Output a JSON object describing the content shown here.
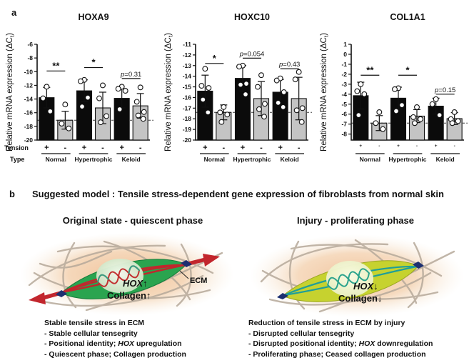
{
  "figure": {
    "panel_a_label": "a",
    "panel_b_label": "b"
  },
  "chart_data": [
    {
      "type": "bar",
      "title": "HOXA9",
      "ylabel": "Relative mRNA expression (ΔC_{t})",
      "ylim": [
        -20,
        -6
      ],
      "yticks": [
        -6,
        -8,
        -10,
        -12,
        -14,
        -16,
        -18,
        -20
      ],
      "dashed_baseline": -17.1,
      "groups": [
        "Normal",
        "Hypertrophic",
        "Keloid"
      ],
      "row_labels": {
        "tension": "Tension",
        "type": "Type"
      },
      "bars": [
        {
          "group": "Normal",
          "tension": "+",
          "color": "black",
          "mean": -13.8,
          "sd": 1.5,
          "points": [
            -12.2,
            -13.9,
            -15.8
          ]
        },
        {
          "group": "Normal",
          "tension": "-",
          "color": "gray",
          "mean": -17.1,
          "sd": 1.3,
          "points": [
            -14.8,
            -17.6,
            -18.3
          ]
        },
        {
          "group": "Hypertrophic",
          "tension": "+",
          "color": "black",
          "mean": -12.8,
          "sd": 1.6,
          "points": [
            -11.2,
            -11.4,
            -13.8,
            -15.1
          ]
        },
        {
          "group": "Hypertrophic",
          "tension": "-",
          "color": "gray",
          "mean": -15.3,
          "sd": 2.3,
          "points": [
            -12.0,
            -13.9,
            -16.5,
            -17.4
          ]
        },
        {
          "group": "Keloid",
          "tension": "+",
          "color": "black",
          "mean": -13.9,
          "sd": 1.4,
          "points": [
            -12.2,
            -12.5,
            -12.8,
            -15.5
          ]
        },
        {
          "group": "Keloid",
          "tension": "-",
          "color": "gray",
          "mean": -15.0,
          "sd": 1.8,
          "points": [
            -12.3,
            -14.4,
            -15.9,
            -16.4,
            -16.9
          ]
        }
      ],
      "annotations": [
        {
          "pair": 0,
          "label": "**",
          "y": -9.9
        },
        {
          "pair": 1,
          "label": "*",
          "y": -9.4
        },
        {
          "pair": 2,
          "label": "p=0.31",
          "y": -11.0
        }
      ]
    },
    {
      "type": "bar",
      "title": "HOXC10",
      "ylabel": "Relative mRNA expression (ΔC_{t})",
      "ylim": [
        -20,
        -11
      ],
      "yticks": [
        -11,
        -12,
        -13,
        -14,
        -15,
        -16,
        -17,
        -18,
        -19,
        -20
      ],
      "dashed_baseline": -17.4,
      "groups": [
        "Normal",
        "Hypertrophic",
        "Keloid"
      ],
      "bars": [
        {
          "group": "Normal",
          "tension": "+",
          "color": "black",
          "mean": -15.4,
          "sd": 1.5,
          "points": [
            -13.3,
            -14.9,
            -15.1,
            -16.2,
            -17.4
          ]
        },
        {
          "group": "Normal",
          "tension": "-",
          "color": "gray",
          "mean": -17.4,
          "sd": 0.7,
          "points": [
            -16.9,
            -17.4,
            -17.6,
            -18.3
          ]
        },
        {
          "group": "Hypertrophic",
          "tension": "+",
          "color": "black",
          "mean": -14.2,
          "sd": 1.2,
          "points": [
            -13.0,
            -13.1,
            -14.7,
            -14.8,
            -15.7
          ]
        },
        {
          "group": "Hypertrophic",
          "tension": "-",
          "color": "gray",
          "mean": -16.1,
          "sd": 1.6,
          "points": [
            -13.9,
            -15.0,
            -16.6,
            -17.1,
            -17.8
          ]
        },
        {
          "group": "Keloid",
          "tension": "+",
          "color": "black",
          "mean": -15.5,
          "sd": 1.2,
          "points": [
            -14.2,
            -14.4,
            -15.5,
            -16.5,
            -16.9
          ]
        },
        {
          "group": "Keloid",
          "tension": "-",
          "color": "gray",
          "mean": -16.1,
          "sd": 2.0,
          "points": [
            -13.6,
            -14.3,
            -17.0,
            -17.2,
            -18.3
          ]
        }
      ],
      "annotations": [
        {
          "pair": 0,
          "label": "*",
          "y": -12.8
        },
        {
          "pair": 1,
          "label": "p=0.054",
          "y": -12.3
        },
        {
          "pair": 2,
          "label": "p=0.43",
          "y": -13.3
        }
      ]
    },
    {
      "type": "bar",
      "title": "COL1A1",
      "ylabel": "Relative mRNA expression (ΔC_{t})",
      "ylim": [
        -8.6,
        1
      ],
      "yticks": [
        1,
        0,
        -1,
        -2,
        -3,
        -4,
        -5,
        -6,
        -7,
        -8
      ],
      "dashed_baseline": -6.9,
      "groups": [
        "Normal",
        "Hypertrophic",
        "Keloid"
      ],
      "bars": [
        {
          "group": "Normal",
          "tension": "+",
          "color": "black",
          "mean": -4.15,
          "sd": 1.35,
          "points": [
            -3.0,
            -3.7,
            -4.0,
            -6.1
          ]
        },
        {
          "group": "Normal",
          "tension": "-",
          "color": "gray",
          "mean": -6.9,
          "sd": 0.75,
          "points": [
            -5.8,
            -6.9,
            -7.5
          ]
        },
        {
          "group": "Hypertrophic",
          "tension": "+",
          "color": "black",
          "mean": -4.4,
          "sd": 1.1,
          "points": [
            -3.4,
            -3.5,
            -5.1,
            -5.7
          ]
        },
        {
          "group": "Hypertrophic",
          "tension": "-",
          "color": "gray",
          "mean": -6.2,
          "sd": 0.65,
          "points": [
            -5.3,
            -6.3,
            -6.5,
            -6.9
          ]
        },
        {
          "group": "Keloid",
          "tension": "+",
          "color": "black",
          "mean": -5.2,
          "sd": 0.8,
          "points": [
            -4.5,
            -5.0,
            -6.1
          ]
        },
        {
          "group": "Keloid",
          "tension": "-",
          "color": "gray",
          "mean": -6.45,
          "sd": 0.6,
          "points": [
            -5.8,
            -6.5,
            -6.7,
            -6.9
          ]
        }
      ],
      "annotations": [
        {
          "pair": 0,
          "label": "**",
          "y": -2.1
        },
        {
          "pair": 1,
          "label": "*",
          "y": -2.1
        },
        {
          "pair": 2,
          "label": "p=0.15",
          "y": -4.0
        }
      ]
    }
  ],
  "panel_b": {
    "title": "Suggested model : Tensile stress-dependent gene expression of fibroblasts from normal skin",
    "left": {
      "subtitle": "Original state - quiescent phase",
      "cell_labels": {
        "hox": "HOX↑",
        "collagen": "Collagen↑",
        "ecm": "ECM"
      },
      "caption_title": "Stable tensile stress in ECM",
      "bullets": [
        {
          "pre": "- Stable cellular tensegrity",
          "em": "",
          "post": ""
        },
        {
          "pre": "- Positional identity; ",
          "em": "HOX",
          "post": " upregulation"
        },
        {
          "pre": "- Quiescent phase; Collagen production",
          "em": "",
          "post": ""
        }
      ]
    },
    "right": {
      "subtitle": "Injury - proliferating phase",
      "cell_labels": {
        "hox": "HOX↓",
        "collagen": "Collagen↓"
      },
      "caption_title": "Reduction of tensile stress in ECM by injury",
      "bullets": [
        {
          "pre": "- Disrupted cellular tensegrity",
          "em": "",
          "post": ""
        },
        {
          "pre": "- Disrupted positional identity; ",
          "em": "HOX",
          "post": " downregulation"
        },
        {
          "pre": "- Proliferating phase; Ceased collagen production",
          "em": "",
          "post": ""
        }
      ]
    }
  },
  "colors": {
    "bar_black": "#0b0b0b",
    "bar_gray": "#c4c4c4",
    "cell_green": "#2aa44f",
    "cell_yellow": "#c6d22f",
    "tension_red": "#c2262d",
    "cytoskeleton_teal": "#1f9e99",
    "focal_adhesion_navy": "#1c2f70",
    "ecm_fiber_gray": "#b6a99a",
    "glow_peach": "#f2c69e"
  }
}
